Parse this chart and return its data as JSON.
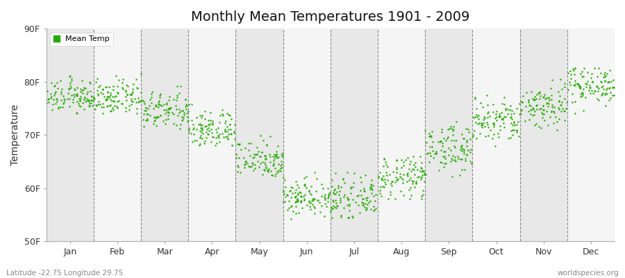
{
  "title": "Monthly Mean Temperatures 1901 - 2009",
  "ylabel": "Temperature",
  "xlabel_months": [
    "Jan",
    "Feb",
    "Mar",
    "Apr",
    "May",
    "Jun",
    "Jul",
    "Aug",
    "Sep",
    "Oct",
    "Nov",
    "Dec"
  ],
  "yticks": [
    50,
    60,
    70,
    80,
    90
  ],
  "ytick_labels": [
    "50F",
    "60F",
    "70F",
    "80F",
    "90F"
  ],
  "ylim": [
    50,
    90
  ],
  "dot_color": "#22aa00",
  "background_color": "#ffffff",
  "stripe_color_odd": "#e8e8e8",
  "stripe_color_even": "#f5f5f5",
  "legend_label": "Mean Temp",
  "footer_left": "Latitude -22.75 Longitude 29.75",
  "footer_right": "worldspecies.org",
  "n_years": 109,
  "monthly_means": [
    77.2,
    77.0,
    74.5,
    71.0,
    65.5,
    58.5,
    58.0,
    62.0,
    67.5,
    72.5,
    75.5,
    79.5
  ],
  "monthly_stds": [
    1.5,
    1.6,
    1.8,
    1.8,
    1.8,
    1.8,
    1.8,
    2.0,
    2.2,
    2.2,
    2.2,
    1.8
  ],
  "monthly_mins": [
    74.0,
    74.0,
    69.0,
    68.0,
    61.0,
    54.0,
    54.5,
    58.0,
    62.0,
    67.0,
    70.0,
    74.0
  ],
  "monthly_maxes": [
    81.5,
    81.5,
    79.5,
    76.0,
    70.5,
    63.5,
    63.0,
    66.0,
    72.5,
    77.5,
    80.5,
    82.5
  ]
}
